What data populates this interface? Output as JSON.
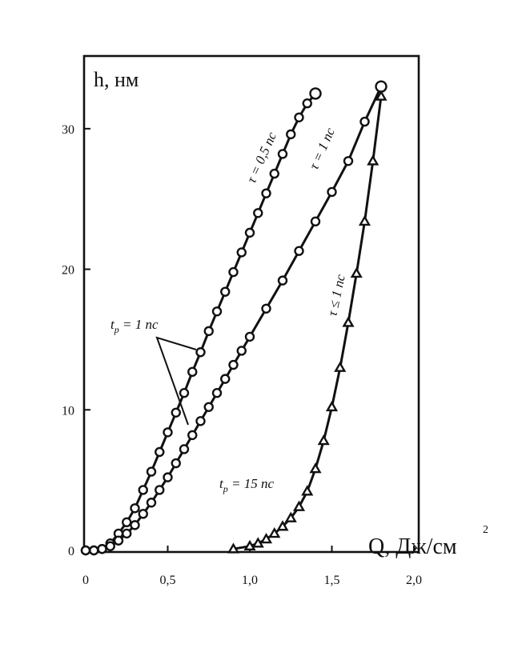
{
  "chart_data": {
    "type": "line",
    "ylabel": "h, нм",
    "xlabel": "Q, Дж/см",
    "xlabel_sup": "2",
    "xlim": [
      0,
      2.0
    ],
    "ylim": [
      0,
      35
    ],
    "x_ticks": [
      {
        "v": 0,
        "label": "0"
      },
      {
        "v": 0.5,
        "label": "0,5"
      },
      {
        "v": 1.0,
        "label": "1,0"
      },
      {
        "v": 1.5,
        "label": "1,5"
      },
      {
        "v": 2.0,
        "label": "2,0"
      }
    ],
    "y_ticks": [
      {
        "v": 0,
        "label": "0"
      },
      {
        "v": 10,
        "label": "10"
      },
      {
        "v": 20,
        "label": "20"
      },
      {
        "v": 30,
        "label": "30"
      }
    ],
    "grid": false,
    "series": [
      {
        "name": "τ = 0,5 пс",
        "marker": "circle",
        "x": [
          0,
          0.05,
          0.1,
          0.15,
          0.2,
          0.25,
          0.3,
          0.35,
          0.4,
          0.45,
          0.5,
          0.55,
          0.6,
          0.65,
          0.7,
          0.75,
          0.8,
          0.85,
          0.9,
          0.95,
          1.0,
          1.05,
          1.1,
          1.15,
          1.2,
          1.25,
          1.3,
          1.35,
          1.4
        ],
        "y": [
          0,
          0,
          0.1,
          0.5,
          1.2,
          2.0,
          3.0,
          4.3,
          5.6,
          7.0,
          8.4,
          9.8,
          11.2,
          12.7,
          14.1,
          15.6,
          17.0,
          18.4,
          19.8,
          21.2,
          22.6,
          24.0,
          25.4,
          26.8,
          28.2,
          29.6,
          30.8,
          31.8,
          32.5
        ]
      },
      {
        "name": "τ = 1 пс",
        "marker": "circle",
        "x": [
          0,
          0.05,
          0.1,
          0.15,
          0.2,
          0.25,
          0.3,
          0.35,
          0.4,
          0.45,
          0.5,
          0.55,
          0.6,
          0.65,
          0.7,
          0.75,
          0.8,
          0.85,
          0.9,
          0.95,
          1.0,
          1.1,
          1.2,
          1.3,
          1.4,
          1.5,
          1.6,
          1.7,
          1.8
        ],
        "y": [
          0,
          0,
          0.1,
          0.3,
          0.7,
          1.2,
          1.8,
          2.6,
          3.4,
          4.3,
          5.2,
          6.2,
          7.2,
          8.2,
          9.2,
          10.2,
          11.2,
          12.2,
          13.2,
          14.2,
          15.2,
          17.2,
          19.2,
          21.3,
          23.4,
          25.5,
          27.7,
          30.5,
          33.0
        ]
      },
      {
        "name": "τ ≤ 1 пс",
        "marker": "triangle",
        "x": [
          0.9,
          1.0,
          1.05,
          1.1,
          1.15,
          1.2,
          1.25,
          1.3,
          1.35,
          1.4,
          1.45,
          1.5,
          1.55,
          1.6,
          1.65,
          1.7,
          1.75,
          1.8
        ],
        "y": [
          0.1,
          0.3,
          0.5,
          0.8,
          1.2,
          1.7,
          2.3,
          3.1,
          4.2,
          5.8,
          7.8,
          10.2,
          13.0,
          16.2,
          19.7,
          23.4,
          27.7,
          32.3
        ]
      }
    ],
    "annotations": [
      {
        "text": "τ = 0,5 пс"
      },
      {
        "text": "τ = 1 пс"
      },
      {
        "text": "τ ≤ 1 пс"
      },
      {
        "text": "t",
        "sub": "p",
        "rest": " = 1 пс"
      },
      {
        "text": "t",
        "sub": "p",
        "rest": " = 15 пс"
      }
    ]
  }
}
